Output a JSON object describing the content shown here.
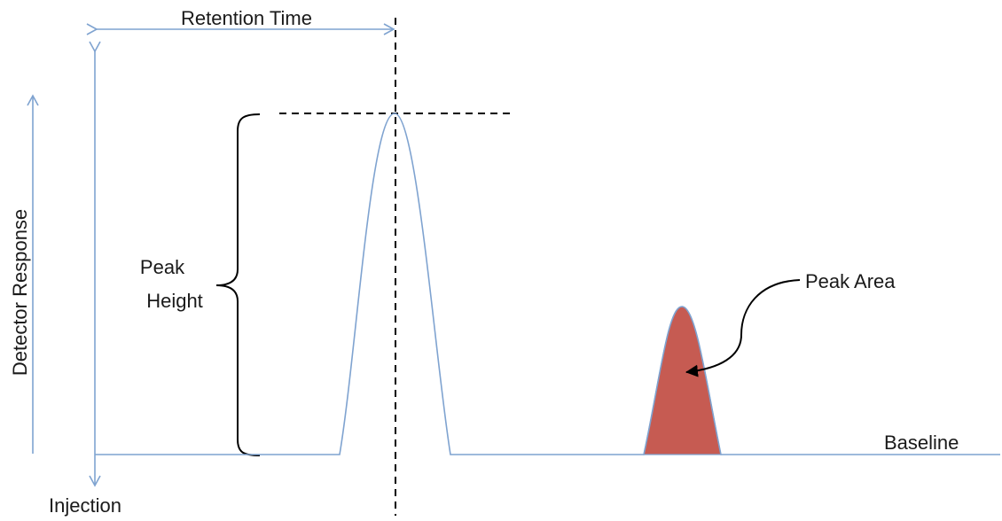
{
  "labels": {
    "retention_time": "Retention Time",
    "detector_response": "Detector Response",
    "peak_height_line1": "Peak",
    "peak_height_line2": "Height",
    "peak_area": "Peak Area",
    "baseline": "Baseline",
    "injection": "Injection"
  },
  "colors": {
    "trace": "#7fa3d0",
    "peak_fill": "#c65b52",
    "guide": "#000000",
    "text": "#1a1a1a"
  }
}
